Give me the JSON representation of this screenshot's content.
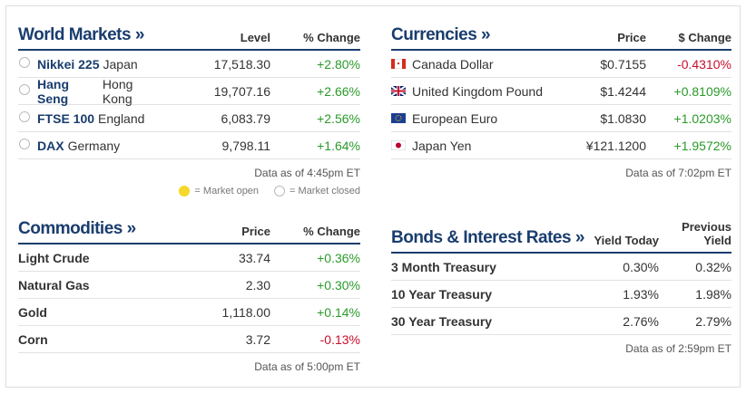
{
  "world_markets": {
    "title": "World Markets »",
    "headers": [
      "Level",
      "% Change"
    ],
    "rows": [
      {
        "name": "Nikkei 225",
        "country": "Japan",
        "level": "17,518.30",
        "change": "+2.80%"
      },
      {
        "name": "Hang Seng",
        "country": "Hong Kong",
        "level": "19,707.16",
        "change": "+2.66%"
      },
      {
        "name": "FTSE 100",
        "country": "England",
        "level": "6,083.79",
        "change": "+2.56%"
      },
      {
        "name": "DAX",
        "country": "Germany",
        "level": "9,798.11",
        "change": "+1.64%"
      }
    ],
    "note": "Data as of 4:45pm ET",
    "legend": [
      "= Market open",
      "= Market closed"
    ]
  },
  "currencies": {
    "title": "Currencies »",
    "headers": [
      "Price",
      "$ Change"
    ],
    "rows": [
      {
        "name": "Canada Dollar",
        "price": "$0.7155",
        "change": "-0.4310%"
      },
      {
        "name": "United Kingdom Pound",
        "price": "$1.4244",
        "change": "+0.8109%"
      },
      {
        "name": "European Euro",
        "price": "$1.0830",
        "change": "+1.0203%"
      },
      {
        "name": "Japan Yen",
        "price": "¥121.1200",
        "change": "+1.9572%"
      }
    ],
    "note": "Data as of 7:02pm ET"
  },
  "commodities": {
    "title": "Commodities »",
    "headers": [
      "Price",
      "% Change"
    ],
    "rows": [
      {
        "name": "Light Crude",
        "price": "33.74",
        "change": "+0.36%"
      },
      {
        "name": "Natural Gas",
        "price": "2.30",
        "change": "+0.30%"
      },
      {
        "name": "Gold",
        "price": "1,118.00",
        "change": "+0.14%"
      },
      {
        "name": "Corn",
        "price": "3.72",
        "change": "-0.13%"
      }
    ],
    "note": "Data as of 5:00pm ET"
  },
  "bonds": {
    "title": "Bonds & Interest Rates »",
    "headers": [
      "Yield Today",
      "Previous Yield"
    ],
    "rows": [
      {
        "name": "3 Month Treasury",
        "yield": "0.30%",
        "previous": "0.32%"
      },
      {
        "name": "10 Year Treasury",
        "yield": "1.93%",
        "previous": "1.98%"
      },
      {
        "name": "30 Year Treasury",
        "yield": "2.76%",
        "previous": "2.79%"
      }
    ],
    "note": "Data as of 2:59pm ET"
  }
}
